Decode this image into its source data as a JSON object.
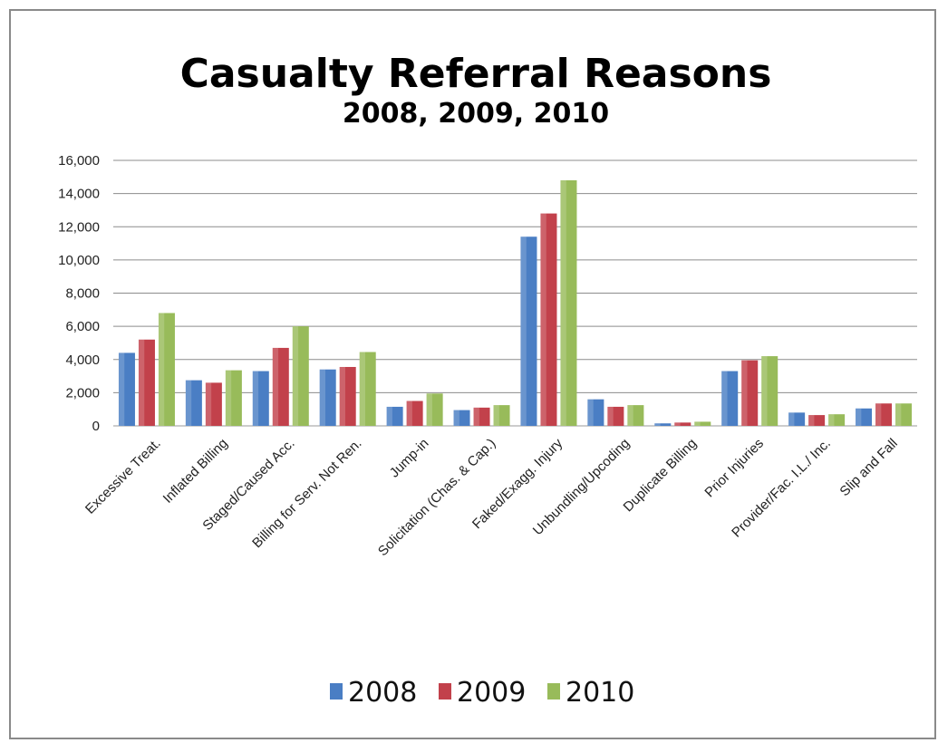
{
  "chart_data": {
    "type": "bar",
    "title": "Casualty Referral  Reasons",
    "subtitle": "2008, 2009, 2010",
    "xlabel": "",
    "ylabel": "",
    "ylim": [
      0,
      16000
    ],
    "yticks": [
      "16,000",
      "14,000",
      "12,000",
      "10,000",
      "8,000",
      "6,000",
      "4,000",
      "2,000",
      "0"
    ],
    "ytick_values": [
      16000,
      14000,
      12000,
      10000,
      8000,
      6000,
      4000,
      2000,
      0
    ],
    "grid": true,
    "legend_position": "bottom",
    "categories": [
      "Excessive Treat.",
      "Inflated Billing",
      "Staged/Caused Acc.",
      "Billing for Serv. Not Ren.",
      "Jump-in",
      "Solicitation (Chas. & Cap.)",
      "Faked/Exagg. Injury",
      "Unbundling/Upcoding",
      "Duplicate Billing",
      "Prior Injuries",
      "Provider/Fac. I.L./ Inc.",
      "Slip and Fall"
    ],
    "series": [
      {
        "name": "2008",
        "color": "#4a7ec4",
        "values": [
          4400,
          2750,
          3300,
          3400,
          1150,
          950,
          11400,
          1600,
          150,
          3300,
          800,
          1050
        ]
      },
      {
        "name": "2009",
        "color": "#c2414b",
        "values": [
          5200,
          2600,
          4700,
          3550,
          1500,
          1100,
          12800,
          1150,
          200,
          3950,
          650,
          1350
        ]
      },
      {
        "name": "2010",
        "color": "#98bb5a",
        "values": [
          6800,
          3350,
          6000,
          4450,
          1950,
          1250,
          14800,
          1250,
          250,
          4200,
          700,
          1350
        ]
      }
    ]
  }
}
